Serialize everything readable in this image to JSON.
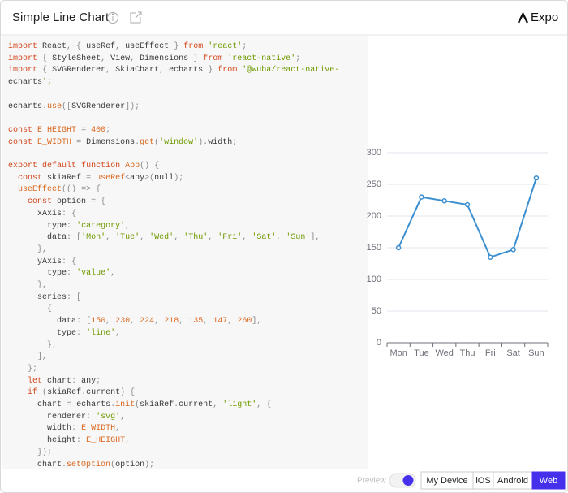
{
  "header": {
    "title": "Simple Line Chart",
    "brand": "Expo"
  },
  "editor": {
    "lines": [
      "import React, { useRef, useEffect } from 'react';",
      "import { StyleSheet, View, Dimensions } from 'react-native';",
      "import { SVGRenderer, SkiaChart, echarts } from '@wuba/react-native-",
      "echarts';",
      null,
      "echarts.use([SVGRenderer]);",
      null,
      "const E_HEIGHT = 400;",
      "const E_WIDTH = Dimensions.get('window').width;",
      null,
      "export default function App() {",
      "  const skiaRef = useRef<any>(null);",
      "  useEffect(() => {",
      "    const option = {",
      "      xAxis: {",
      "        type: 'category',",
      "        data: ['Mon', 'Tue', 'Wed', 'Thu', 'Fri', 'Sat', 'Sun'],",
      "      },",
      "      yAxis: {",
      "        type: 'value',",
      "      },",
      "      series: [",
      "        {",
      "          data: [150, 230, 224, 218, 135, 147, 260],",
      "          type: 'line',",
      "        },",
      "      ],",
      "    };",
      "    let chart: any;",
      "    if (skiaRef.current) {",
      "      chart = echarts.init(skiaRef.current, 'light', {",
      "        renderer: 'svg',",
      "        width: E_WIDTH,",
      "        height: E_HEIGHT,",
      "      });",
      "      chart.setOption(option);"
    ]
  },
  "preview": {
    "chart": {
      "type": "line",
      "categories": [
        "Mon",
        "Tue",
        "Wed",
        "Thu",
        "Fri",
        "Sat",
        "Sun"
      ],
      "values": [
        150,
        230,
        224,
        218,
        135,
        147,
        260
      ],
      "color": "#3b8fd0",
      "ylim": [
        0,
        300
      ],
      "yticks": [
        0,
        50,
        100,
        150,
        200,
        250,
        300
      ],
      "grid": true
    }
  },
  "footer": {
    "preview_label": "Preview",
    "devices": [
      "My Device",
      "iOS",
      "Android",
      "Web"
    ],
    "selected": 3
  }
}
